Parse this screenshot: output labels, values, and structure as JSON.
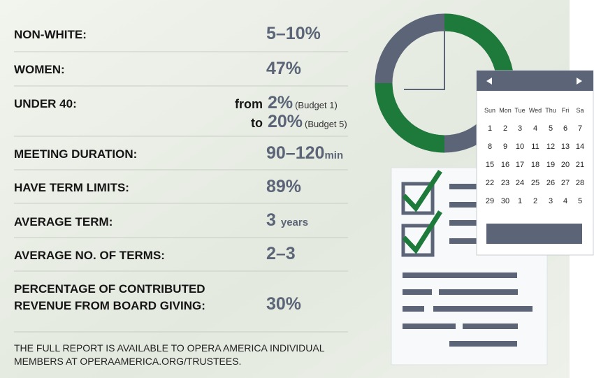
{
  "rows": [
    {
      "label": "NON-WHITE:",
      "value": "5–10%"
    },
    {
      "label": "WOMEN:",
      "value": "47%"
    },
    {
      "label": "UNDER 40:",
      "from": {
        "word": "from",
        "value": "2%",
        "note": "(Budget 1)"
      },
      "to": {
        "word": "to",
        "value": "20%",
        "note": "(Budget 5)"
      }
    },
    {
      "label": "MEETING DURATION:",
      "value": "90–120",
      "unit": "min"
    },
    {
      "label": "HAVE TERM LIMITS:",
      "value": "89%"
    },
    {
      "label": "AVERAGE TERM:",
      "value": "3",
      "unit": "years"
    },
    {
      "label": "AVERAGE NO. OF TERMS:",
      "value": "2–3"
    },
    {
      "label": [
        "PERCENTAGE OF CONTRIBUTED",
        "REVENUE FROM BOARD GIVING:"
      ],
      "value": "30%"
    }
  ],
  "footer": [
    "THE FULL REPORT IS AVAILABLE TO OPERA AMERICA INDIVIDUAL",
    "MEMBERS AT OPERAAMERICA.ORG/TRUSTEES."
  ],
  "calendar": {
    "weekdays": [
      "Sun",
      "Mon",
      "Tue",
      "Wed",
      "Thu",
      "Fri",
      "Sa"
    ],
    "dates": [
      [
        1,
        2,
        3,
        4,
        5,
        6,
        7
      ],
      [
        8,
        9,
        10,
        11,
        12,
        13,
        14
      ],
      [
        15,
        16,
        17,
        18,
        19,
        20,
        21
      ],
      [
        22,
        23,
        24,
        25,
        26,
        27,
        28
      ],
      [
        29,
        30,
        1,
        2,
        3,
        4,
        5
      ]
    ]
  }
}
